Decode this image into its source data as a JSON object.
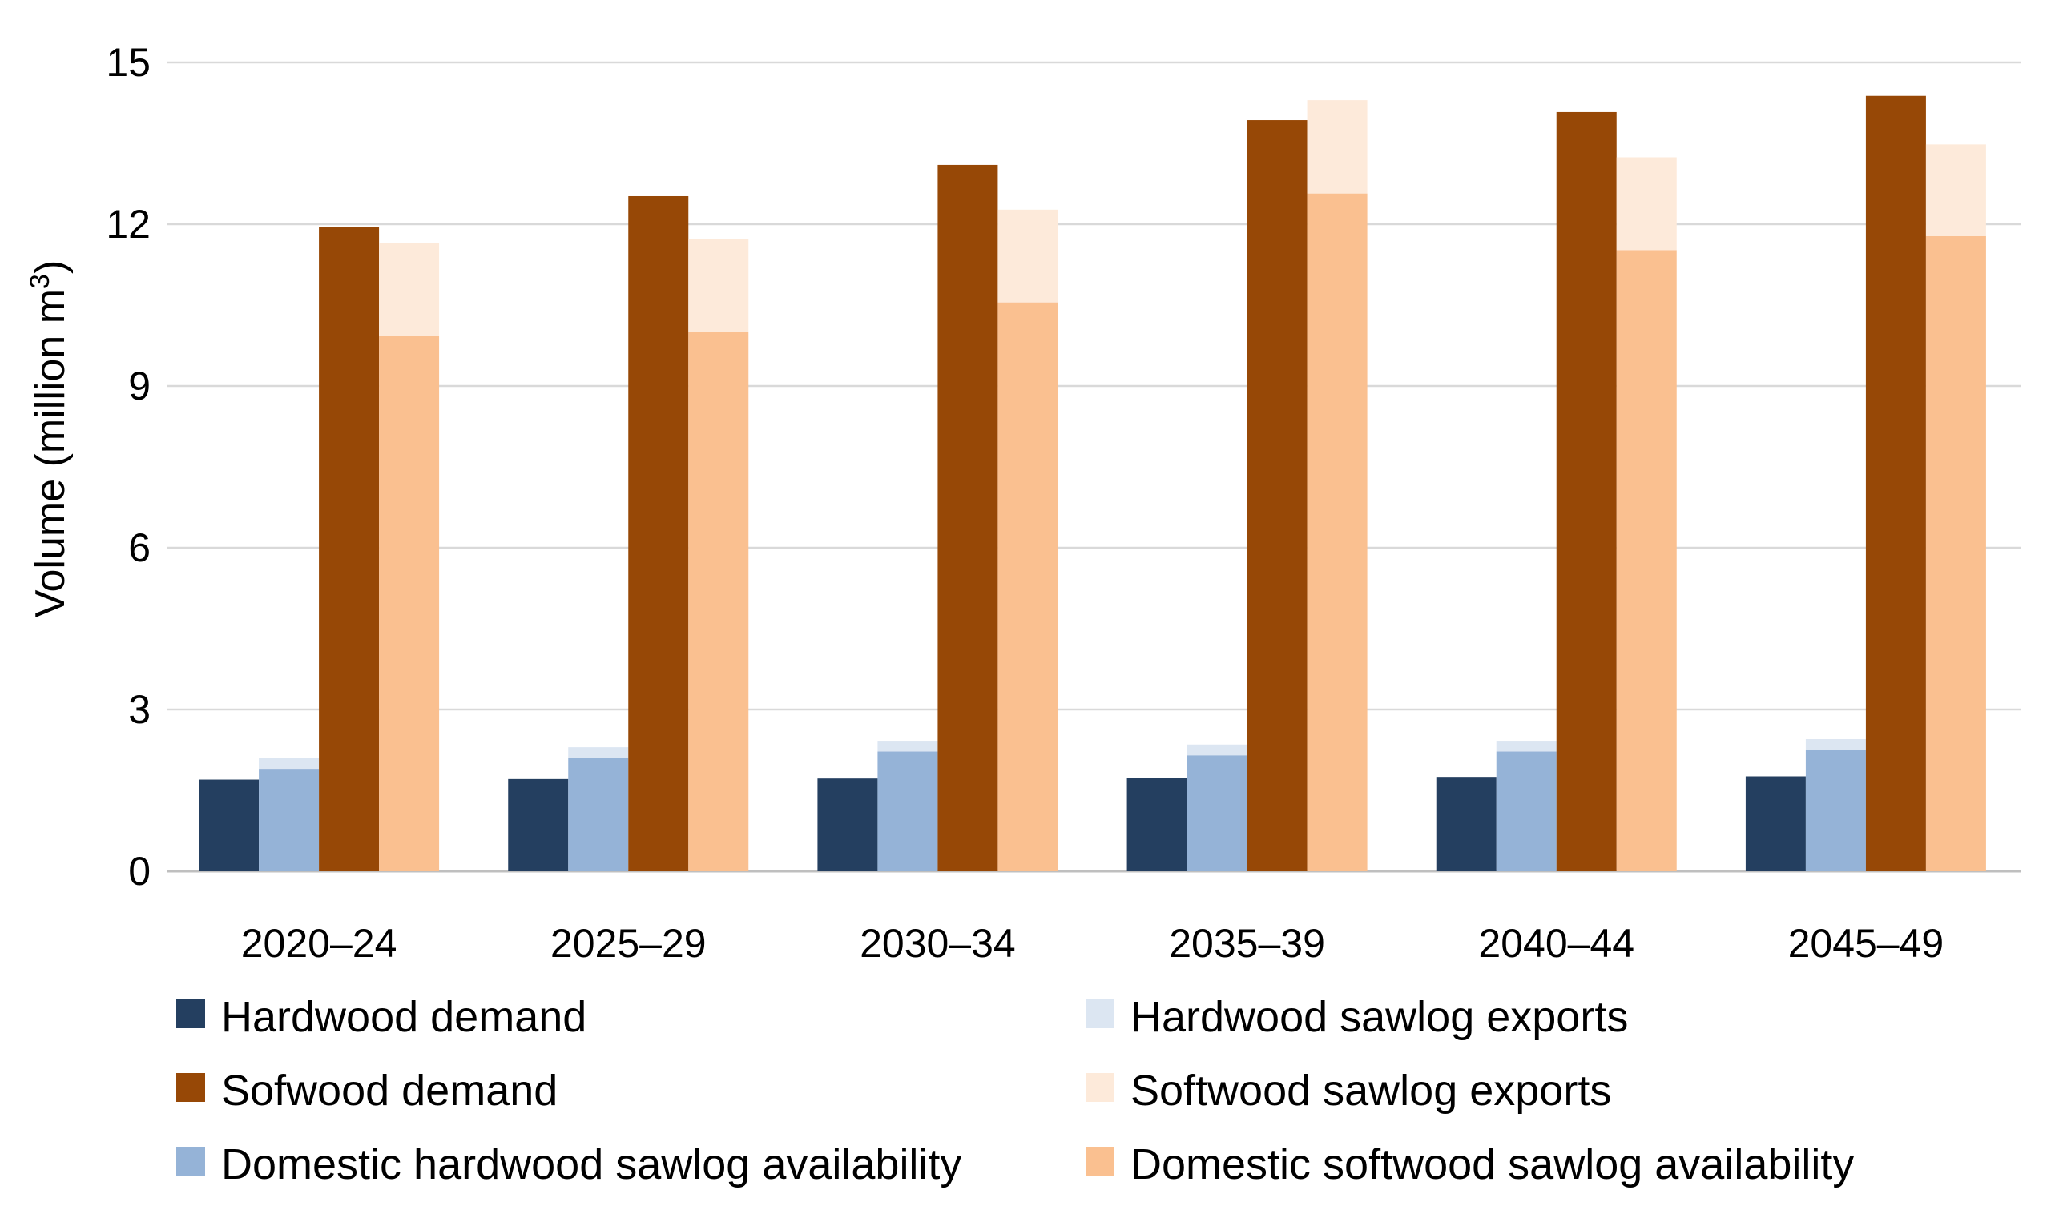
{
  "chart_data": {
    "type": "bar",
    "title": "",
    "xlabel": "",
    "ylabel": "Volume (million m",
    "ylabel_superscript": "3",
    "ylabel_suffix": ")",
    "ylim": [
      0,
      15
    ],
    "yticks": [
      0,
      3,
      6,
      9,
      12,
      15
    ],
    "grid": true,
    "categories": [
      "2020–24",
      "2025–29",
      "2030–34",
      "2035–39",
      "2040–44",
      "2045–49"
    ],
    "series": [
      {
        "name": "Hardwood demand",
        "color": "#243F60",
        "values": [
          1.7,
          1.71,
          1.72,
          1.73,
          1.75,
          1.76
        ]
      },
      {
        "name": "Domestic hardwood sawlog availability",
        "color": "#95B3D7",
        "values": [
          1.9,
          2.1,
          2.22,
          2.15,
          2.22,
          2.25
        ]
      },
      {
        "name": "Hardwood sawlog exports",
        "color": "#DCE6F2",
        "values": [
          0.2,
          0.2,
          0.2,
          0.2,
          0.2,
          0.2
        ]
      },
      {
        "name": "Sofwood demand",
        "color": "#974806",
        "values": [
          11.95,
          12.52,
          13.1,
          13.93,
          14.08,
          14.38
        ]
      },
      {
        "name": "Domestic softwood sawlog availability",
        "color": "#FAC090",
        "values": [
          9.93,
          10.0,
          10.55,
          12.57,
          11.52,
          11.78
        ]
      },
      {
        "name": "Softwood sawlog exports",
        "color": "#FDEADA",
        "values": [
          1.72,
          1.72,
          1.72,
          1.73,
          1.72,
          1.7
        ]
      }
    ],
    "stacks": [
      {
        "position": 1,
        "series": [
          "Hardwood demand"
        ]
      },
      {
        "position": 2,
        "series": [
          "Domestic hardwood sawlog availability",
          "Hardwood sawlog exports"
        ]
      },
      {
        "position": 3,
        "series": [
          "Sofwood demand"
        ]
      },
      {
        "position": 4,
        "series": [
          "Domestic softwood sawlog availability",
          "Softwood sawlog exports"
        ]
      }
    ],
    "legend": {
      "placement": "bottom",
      "columns": [
        [
          "Hardwood demand",
          "Sofwood demand",
          "Domestic hardwood sawlog availability"
        ],
        [
          "Hardwood sawlog exports",
          "Softwood sawlog exports",
          "Domestic softwood sawlog availability"
        ]
      ]
    }
  }
}
